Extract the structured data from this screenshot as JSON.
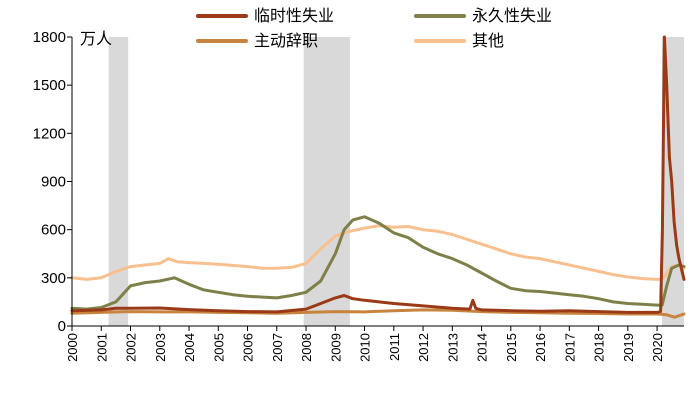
{
  "chart_data": {
    "type": "line",
    "title": "",
    "xlabel": "",
    "ylabel": "万人",
    "ylim": [
      0,
      1800
    ],
    "xlim": [
      2000,
      2020.92
    ],
    "y_ticks": [
      0,
      300,
      600,
      900,
      1200,
      1500,
      1800
    ],
    "x_ticks": [
      2000,
      2001,
      2002,
      2003,
      2004,
      2005,
      2006,
      2007,
      2008,
      2009,
      2010,
      2011,
      2012,
      2013,
      2014,
      2015,
      2016,
      2017,
      2018,
      2019,
      2020
    ],
    "grid": false,
    "legend_position": "top",
    "recession_bands": [
      [
        2001.25,
        2001.92
      ],
      [
        2007.92,
        2009.5
      ],
      [
        2020.17,
        2020.92
      ]
    ],
    "series": [
      {
        "name": "临时性失业",
        "color": "#9B3A16",
        "points": [
          [
            2000,
            95
          ],
          [
            2001,
            100
          ],
          [
            2001.5,
            110
          ],
          [
            2002,
            110
          ],
          [
            2003,
            112
          ],
          [
            2004,
            102
          ],
          [
            2005,
            95
          ],
          [
            2006,
            90
          ],
          [
            2007,
            88
          ],
          [
            2008,
            105
          ],
          [
            2008.5,
            140
          ],
          [
            2009,
            175
          ],
          [
            2009.3,
            190
          ],
          [
            2009.6,
            170
          ],
          [
            2010,
            160
          ],
          [
            2010.5,
            150
          ],
          [
            2011,
            140
          ],
          [
            2012,
            125
          ],
          [
            2013,
            110
          ],
          [
            2013.6,
            105
          ],
          [
            2013.7,
            160
          ],
          [
            2013.8,
            110
          ],
          [
            2014,
            100
          ],
          [
            2015,
            95
          ],
          [
            2016,
            92
          ],
          [
            2017,
            95
          ],
          [
            2018,
            90
          ],
          [
            2019,
            85
          ],
          [
            2020,
            85
          ],
          [
            2020.12,
            90
          ],
          [
            2020.18,
            600
          ],
          [
            2020.25,
            1800
          ],
          [
            2020.33,
            1500
          ],
          [
            2020.42,
            1050
          ],
          [
            2020.5,
            900
          ],
          [
            2020.58,
            650
          ],
          [
            2020.67,
            500
          ],
          [
            2020.75,
            420
          ],
          [
            2020.92,
            290
          ]
        ]
      },
      {
        "name": "永久性失业",
        "color": "#7F7F4A",
        "points": [
          [
            2000,
            110
          ],
          [
            2000.5,
            105
          ],
          [
            2001,
            115
          ],
          [
            2001.5,
            150
          ],
          [
            2002,
            250
          ],
          [
            2002.5,
            270
          ],
          [
            2003,
            280
          ],
          [
            2003.5,
            300
          ],
          [
            2004,
            260
          ],
          [
            2004.5,
            225
          ],
          [
            2005,
            210
          ],
          [
            2005.5,
            195
          ],
          [
            2006,
            185
          ],
          [
            2007,
            175
          ],
          [
            2007.5,
            190
          ],
          [
            2008,
            210
          ],
          [
            2008.5,
            280
          ],
          [
            2009,
            450
          ],
          [
            2009.3,
            600
          ],
          [
            2009.6,
            660
          ],
          [
            2010,
            680
          ],
          [
            2010.5,
            640
          ],
          [
            2011,
            580
          ],
          [
            2011.5,
            550
          ],
          [
            2012,
            490
          ],
          [
            2012.5,
            450
          ],
          [
            2013,
            420
          ],
          [
            2013.5,
            380
          ],
          [
            2014,
            330
          ],
          [
            2014.5,
            280
          ],
          [
            2015,
            235
          ],
          [
            2015.5,
            220
          ],
          [
            2016,
            215
          ],
          [
            2016.5,
            205
          ],
          [
            2017,
            195
          ],
          [
            2017.5,
            185
          ],
          [
            2018,
            170
          ],
          [
            2018.5,
            150
          ],
          [
            2019,
            140
          ],
          [
            2019.5,
            135
          ],
          [
            2020,
            130
          ],
          [
            2020.17,
            130
          ],
          [
            2020.33,
            250
          ],
          [
            2020.5,
            360
          ],
          [
            2020.75,
            380
          ],
          [
            2020.92,
            370
          ]
        ]
      },
      {
        "name": "主动辞职",
        "color": "#C8843E",
        "points": [
          [
            2000,
            80
          ],
          [
            2001,
            85
          ],
          [
            2002,
            90
          ],
          [
            2003,
            88
          ],
          [
            2004,
            88
          ],
          [
            2005,
            85
          ],
          [
            2006,
            82
          ],
          [
            2007,
            80
          ],
          [
            2008,
            85
          ],
          [
            2009,
            90
          ],
          [
            2010,
            88
          ],
          [
            2011,
            95
          ],
          [
            2012,
            100
          ],
          [
            2013,
            98
          ],
          [
            2014,
            90
          ],
          [
            2015,
            85
          ],
          [
            2016,
            82
          ],
          [
            2017,
            80
          ],
          [
            2018,
            78
          ],
          [
            2019,
            75
          ],
          [
            2020,
            75
          ],
          [
            2020.33,
            70
          ],
          [
            2020.6,
            55
          ],
          [
            2020.92,
            75
          ]
        ]
      },
      {
        "name": "其他",
        "color": "#F8C08F",
        "points": [
          [
            2000,
            300
          ],
          [
            2000.5,
            290
          ],
          [
            2001,
            300
          ],
          [
            2001.5,
            340
          ],
          [
            2002,
            370
          ],
          [
            2002.5,
            380
          ],
          [
            2003,
            390
          ],
          [
            2003.3,
            420
          ],
          [
            2003.6,
            400
          ],
          [
            2004,
            395
          ],
          [
            2004.5,
            390
          ],
          [
            2005,
            385
          ],
          [
            2006,
            370
          ],
          [
            2006.5,
            360
          ],
          [
            2007,
            360
          ],
          [
            2007.5,
            365
          ],
          [
            2008,
            390
          ],
          [
            2008.5,
            480
          ],
          [
            2009,
            560
          ],
          [
            2009.5,
            590
          ],
          [
            2010,
            610
          ],
          [
            2010.5,
            625
          ],
          [
            2011,
            615
          ],
          [
            2011.5,
            620
          ],
          [
            2012,
            600
          ],
          [
            2012.5,
            590
          ],
          [
            2013,
            570
          ],
          [
            2013.5,
            540
          ],
          [
            2014,
            510
          ],
          [
            2014.5,
            480
          ],
          [
            2015,
            450
          ],
          [
            2015.5,
            430
          ],
          [
            2016,
            420
          ],
          [
            2016.5,
            400
          ],
          [
            2017,
            380
          ],
          [
            2017.5,
            360
          ],
          [
            2018,
            340
          ],
          [
            2018.5,
            320
          ],
          [
            2019,
            305
          ],
          [
            2019.5,
            295
          ],
          [
            2020,
            290
          ],
          [
            2020.17,
            290
          ],
          [
            2020.33,
            330
          ],
          [
            2020.5,
            370
          ],
          [
            2020.75,
            380
          ],
          [
            2020.92,
            360
          ]
        ]
      }
    ]
  }
}
